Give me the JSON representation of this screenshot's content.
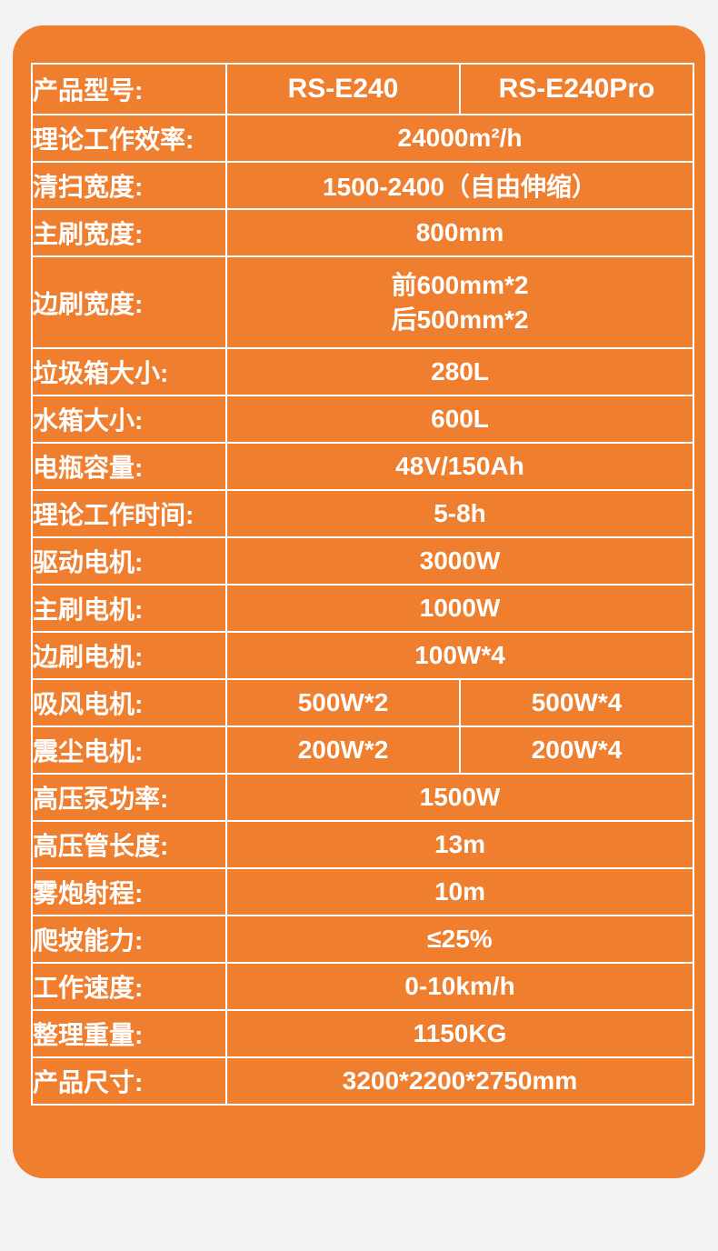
{
  "page": {
    "background_color": "#f3f3f3"
  },
  "card": {
    "background_color": "#ef7e2e",
    "border_color": "#ffffff",
    "text_color": "#ffffff"
  },
  "table": {
    "rows": [
      {
        "label": "产品型号:",
        "values": [
          "RS-E240",
          "RS-E240Pro"
        ]
      },
      {
        "label": "理论工作效率:",
        "value": "24000m²/h"
      },
      {
        "label": "清扫宽度:",
        "value": "1500-2400（自由伸缩）"
      },
      {
        "label": "主刷宽度:",
        "value": "800mm"
      },
      {
        "label": "边刷宽度:",
        "value_lines": [
          "前600mm*2",
          "后500mm*2"
        ],
        "tall": true
      },
      {
        "label": "垃圾箱大小:",
        "value": "280L"
      },
      {
        "label": "水箱大小:",
        "value": "600L"
      },
      {
        "label": "电瓶容量:",
        "value": "48V/150Ah"
      },
      {
        "label": "理论工作时间:",
        "value": "5-8h"
      },
      {
        "label": "驱动电机:",
        "value": "3000W"
      },
      {
        "label": "主刷电机:",
        "value": "1000W"
      },
      {
        "label": "边刷电机:",
        "value": "100W*4"
      },
      {
        "label": "吸风电机:",
        "values": [
          "500W*2",
          "500W*4"
        ]
      },
      {
        "label": "震尘电机:",
        "values": [
          "200W*2",
          "200W*4"
        ]
      },
      {
        "label": "高压泵功率:",
        "value": "1500W"
      },
      {
        "label": "高压管长度:",
        "value": "13m"
      },
      {
        "label": "雾炮射程:",
        "value": "10m"
      },
      {
        "label": "爬坡能力:",
        "value": "≤25%"
      },
      {
        "label": "工作速度:",
        "value": "0-10km/h"
      },
      {
        "label": "整理重量:",
        "value": "1150KG"
      },
      {
        "label": "产品尺寸:",
        "value": "3200*2200*2750mm"
      }
    ]
  }
}
